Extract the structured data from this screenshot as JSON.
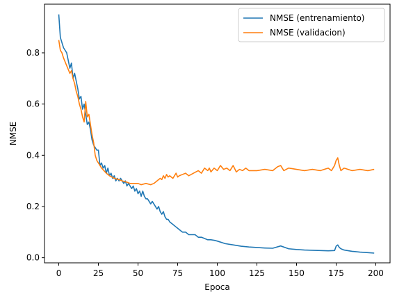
{
  "chart_data": {
    "type": "line",
    "title": "",
    "xlabel": "Epoca",
    "ylabel": "NMSE",
    "xlim": [
      -9,
      209
    ],
    "ylim": [
      -0.02,
      0.99
    ],
    "xticks": [
      0,
      25,
      50,
      75,
      100,
      125,
      150,
      175,
      200
    ],
    "yticks": [
      0.0,
      0.2,
      0.4,
      0.6,
      0.8
    ],
    "ytick_labels": [
      "0.0",
      "0.2",
      "0.4",
      "0.6",
      "0.8"
    ],
    "grid": false,
    "legend_position": "top-right",
    "series": [
      {
        "name": "NMSE (entrenamiento)",
        "color": "#1f77b4",
        "x": [
          0,
          1,
          3,
          5,
          7,
          8,
          9,
          10,
          11,
          12,
          13,
          14,
          15,
          16,
          17,
          18,
          19,
          20,
          21,
          22,
          23,
          24,
          25,
          26,
          27,
          28,
          29,
          30,
          31,
          32,
          33,
          34,
          35,
          36,
          37,
          38,
          39,
          40,
          41,
          42,
          43,
          44,
          45,
          46,
          47,
          48,
          49,
          50,
          51,
          52,
          53,
          54,
          55,
          56,
          57,
          58,
          59,
          60,
          61,
          62,
          63,
          64,
          65,
          66,
          67,
          68,
          69,
          70,
          72,
          74,
          76,
          78,
          80,
          82,
          84,
          86,
          88,
          90,
          92,
          94,
          96,
          98,
          100,
          105,
          110,
          115,
          120,
          125,
          130,
          135,
          140,
          145,
          150,
          155,
          160,
          165,
          170,
          174,
          175,
          176,
          177,
          178,
          180,
          185,
          190,
          195,
          199
        ],
        "values": [
          0.95,
          0.86,
          0.82,
          0.8,
          0.74,
          0.76,
          0.7,
          0.72,
          0.69,
          0.66,
          0.62,
          0.63,
          0.58,
          0.6,
          0.56,
          0.52,
          0.53,
          0.5,
          0.46,
          0.44,
          0.43,
          0.42,
          0.42,
          0.36,
          0.37,
          0.35,
          0.36,
          0.33,
          0.35,
          0.32,
          0.33,
          0.31,
          0.32,
          0.3,
          0.31,
          0.3,
          0.31,
          0.3,
          0.29,
          0.3,
          0.28,
          0.29,
          0.28,
          0.27,
          0.28,
          0.26,
          0.27,
          0.25,
          0.26,
          0.24,
          0.26,
          0.24,
          0.23,
          0.23,
          0.22,
          0.21,
          0.22,
          0.21,
          0.2,
          0.19,
          0.2,
          0.18,
          0.17,
          0.18,
          0.16,
          0.15,
          0.15,
          0.14,
          0.13,
          0.12,
          0.11,
          0.1,
          0.1,
          0.09,
          0.09,
          0.09,
          0.08,
          0.08,
          0.075,
          0.07,
          0.07,
          0.068,
          0.065,
          0.055,
          0.05,
          0.045,
          0.042,
          0.04,
          0.038,
          0.037,
          0.046,
          0.035,
          0.032,
          0.03,
          0.029,
          0.028,
          0.027,
          0.028,
          0.045,
          0.05,
          0.04,
          0.035,
          0.03,
          0.025,
          0.022,
          0.02,
          0.018
        ]
      },
      {
        "name": "NMSE (validacion)",
        "color": "#ff7f0e",
        "x": [
          0,
          1,
          2,
          3,
          5,
          7,
          8,
          9,
          10,
          11,
          12,
          13,
          14,
          15,
          16,
          17,
          18,
          19,
          20,
          21,
          22,
          23,
          24,
          25,
          27,
          30,
          32,
          35,
          38,
          40,
          43,
          45,
          48,
          50,
          52,
          55,
          58,
          60,
          62,
          64,
          65,
          66,
          67,
          68,
          69,
          70,
          72,
          74,
          75,
          76,
          78,
          80,
          82,
          85,
          88,
          90,
          92,
          94,
          95,
          96,
          98,
          100,
          102,
          104,
          106,
          108,
          110,
          112,
          114,
          116,
          118,
          120,
          125,
          130,
          135,
          138,
          140,
          142,
          145,
          150,
          155,
          160,
          165,
          170,
          172,
          174,
          175,
          176,
          177,
          178,
          180,
          185,
          190,
          195,
          199
        ],
        "values": [
          0.85,
          0.81,
          0.8,
          0.78,
          0.75,
          0.72,
          0.73,
          0.7,
          0.68,
          0.65,
          0.63,
          0.6,
          0.58,
          0.55,
          0.53,
          0.61,
          0.55,
          0.56,
          0.52,
          0.48,
          0.45,
          0.4,
          0.38,
          0.37,
          0.35,
          0.33,
          0.32,
          0.31,
          0.305,
          0.3,
          0.295,
          0.29,
          0.29,
          0.29,
          0.285,
          0.29,
          0.285,
          0.29,
          0.3,
          0.31,
          0.305,
          0.32,
          0.31,
          0.325,
          0.315,
          0.32,
          0.31,
          0.33,
          0.315,
          0.32,
          0.325,
          0.33,
          0.32,
          0.33,
          0.34,
          0.33,
          0.35,
          0.34,
          0.35,
          0.335,
          0.35,
          0.34,
          0.36,
          0.345,
          0.35,
          0.34,
          0.36,
          0.335,
          0.345,
          0.34,
          0.35,
          0.34,
          0.34,
          0.345,
          0.34,
          0.355,
          0.36,
          0.34,
          0.35,
          0.345,
          0.34,
          0.345,
          0.34,
          0.35,
          0.34,
          0.36,
          0.38,
          0.39,
          0.36,
          0.34,
          0.35,
          0.34,
          0.345,
          0.34,
          0.345
        ]
      }
    ]
  }
}
